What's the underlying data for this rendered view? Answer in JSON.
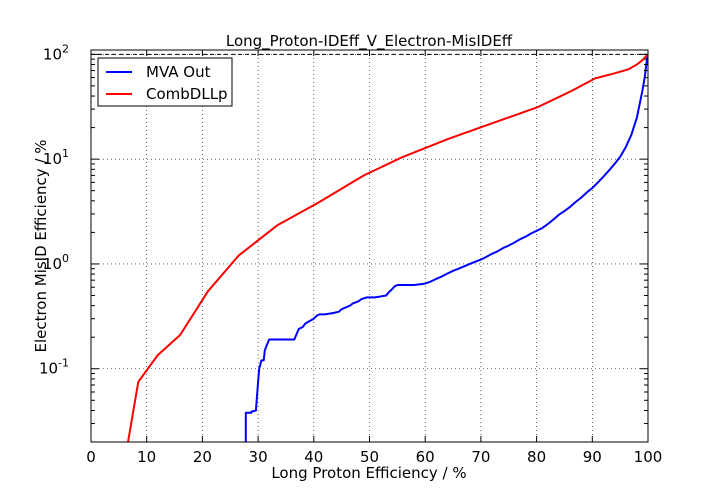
{
  "chart_data": {
    "type": "line",
    "title": "Long_Proton-IDEff_V_Electron-MisIDEff",
    "xlabel": "Long Proton Efficiency / %",
    "ylabel": "Electron MisID Efficiency / %",
    "xlim": [
      0,
      100
    ],
    "ylim": [
      0.02,
      110
    ],
    "yscale": "log",
    "grid": true,
    "legend_position": "top-left",
    "x_ticks": [
      {
        "value": 0,
        "label": "0"
      },
      {
        "value": 10,
        "label": "10"
      },
      {
        "value": 20,
        "label": "20"
      },
      {
        "value": 30,
        "label": "30"
      },
      {
        "value": 40,
        "label": "40"
      },
      {
        "value": 50,
        "label": "50"
      },
      {
        "value": 60,
        "label": "60"
      },
      {
        "value": 70,
        "label": "70"
      },
      {
        "value": 80,
        "label": "80"
      },
      {
        "value": 90,
        "label": "90"
      },
      {
        "value": 100,
        "label": "100"
      }
    ],
    "y_ticks": [
      {
        "value": 0.1,
        "base": "10",
        "exp": "-1"
      },
      {
        "value": 1,
        "base": "10",
        "exp": "0"
      },
      {
        "value": 10,
        "base": "10",
        "exp": "1"
      },
      {
        "value": 100,
        "base": "10",
        "exp": "2"
      }
    ],
    "reference_line": {
      "y": 100,
      "style": "dashed",
      "color": "#000000"
    },
    "series": [
      {
        "name": "MVA Out",
        "color": "#0000ff",
        "x": [
          27.8,
          27.8,
          28.8,
          28.8,
          29.6,
          29.8,
          30.0,
          30.2,
          30.6,
          31.0,
          31.2,
          31.6,
          32.0,
          32.2,
          32.6,
          36.5,
          37.0,
          37.3,
          38.0,
          38.5,
          39.0,
          39.5,
          40.0,
          40.5,
          41.0,
          42.0,
          43.5,
          44.5,
          45.0,
          45.5,
          46.0,
          46.5,
          47.0,
          47.5,
          48.0,
          48.5,
          49.0,
          49.5,
          50.0,
          51.0,
          53.0,
          53.5,
          54.0,
          54.5,
          55.0,
          55.3,
          55.6,
          58.0,
          60.0,
          61.0,
          62.0,
          63.0,
          64.0,
          65.0,
          66.0,
          67.0,
          68.0,
          69.0,
          70.0,
          71.0,
          72.0,
          73.0,
          74.0,
          75.0,
          76.0,
          77.0,
          78.0,
          79.0,
          80.0,
          81.0,
          82.0,
          83.0,
          84.0,
          85.0,
          86.0,
          87.0,
          88.0,
          89.0,
          90.0,
          91.0,
          92.0,
          93.0,
          94.0,
          95.0,
          96.0,
          97.0,
          98.0,
          99.0,
          99.4,
          99.7,
          99.9,
          100.0
        ],
        "values": [
          0.018,
          0.038,
          0.038,
          0.039,
          0.04,
          0.055,
          0.075,
          0.1,
          0.12,
          0.12,
          0.15,
          0.17,
          0.19,
          0.19,
          0.19,
          0.19,
          0.22,
          0.24,
          0.25,
          0.27,
          0.28,
          0.29,
          0.3,
          0.32,
          0.33,
          0.33,
          0.34,
          0.35,
          0.37,
          0.38,
          0.39,
          0.4,
          0.42,
          0.43,
          0.44,
          0.46,
          0.47,
          0.48,
          0.48,
          0.48,
          0.5,
          0.54,
          0.57,
          0.61,
          0.63,
          0.63,
          0.63,
          0.63,
          0.65,
          0.68,
          0.72,
          0.76,
          0.81,
          0.86,
          0.9,
          0.95,
          1.0,
          1.05,
          1.1,
          1.17,
          1.25,
          1.32,
          1.42,
          1.5,
          1.6,
          1.72,
          1.82,
          1.95,
          2.07,
          2.2,
          2.4,
          2.65,
          2.95,
          3.2,
          3.5,
          3.9,
          4.3,
          4.8,
          5.3,
          6.0,
          6.8,
          7.8,
          9.0,
          10.5,
          13.0,
          17.0,
          25.0,
          45.0,
          60.0,
          80.0,
          95.0,
          100.0
        ]
      },
      {
        "name": "CombDLLp",
        "color": "#ff0000",
        "x": [
          2.0,
          6.5,
          8.5,
          12.0,
          16.0,
          21.0,
          26.5,
          33.5,
          41.0,
          49.0,
          56.0,
          64.0,
          72.0,
          80.0,
          86.0,
          90.5,
          94.0,
          96.5,
          98.0,
          99.0,
          99.5,
          100.0
        ],
        "values": [
          0.018,
          0.018,
          0.075,
          0.135,
          0.21,
          0.55,
          1.2,
          2.35,
          3.9,
          7.0,
          10.5,
          15.5,
          22.0,
          31.0,
          44.0,
          59.0,
          66.0,
          72.0,
          80.0,
          88.0,
          94.0,
          100.0
        ]
      }
    ]
  }
}
